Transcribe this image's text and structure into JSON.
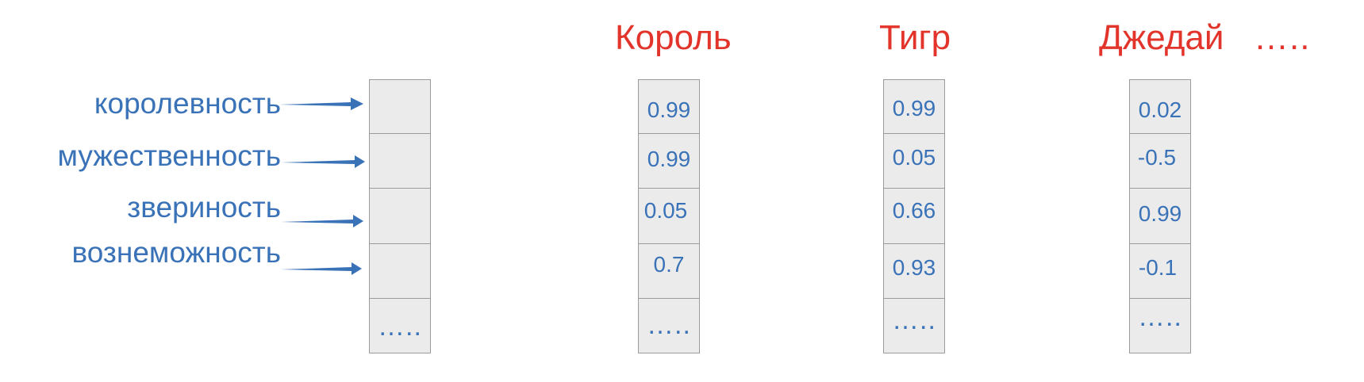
{
  "features": [
    "королевность",
    "мужественность",
    "звериность",
    "вознеможность"
  ],
  "feature_vector": {
    "ellipsis": "….."
  },
  "words": [
    {
      "title": "Король",
      "values": [
        "0.99",
        "0.99",
        "0.05",
        "0.7"
      ],
      "ellipsis": "….."
    },
    {
      "title": "Тигр",
      "values": [
        "0.99",
        "0.05",
        "0.66",
        "0.93"
      ],
      "ellipsis": "….."
    },
    {
      "title": "Джедай",
      "values": [
        "0.02",
        "-0.5",
        "0.99",
        "-0.1"
      ],
      "ellipsis": "….."
    }
  ],
  "more_words": "…..",
  "colors": {
    "feature_text": "#3a72b8",
    "word_title": "#e2342b",
    "cell_fill": "#ebebeb",
    "cell_border": "#9b9b9b",
    "arrow": "#3a72b8"
  }
}
